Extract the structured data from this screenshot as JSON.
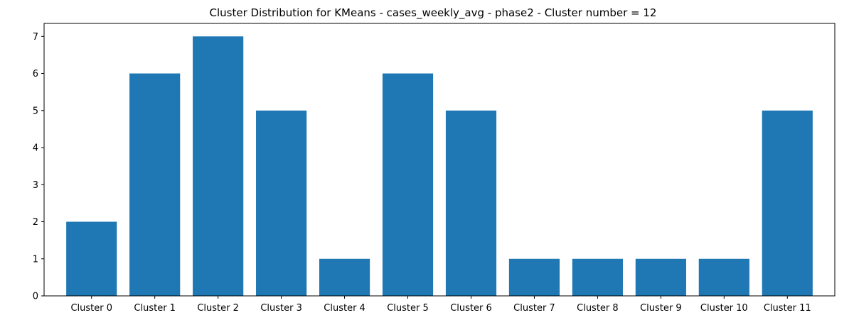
{
  "chart_data": {
    "type": "bar",
    "title": "Cluster Distribution for KMeans - cases_weekly_avg - phase2 - Cluster number = 12",
    "xlabel": "",
    "ylabel": "",
    "categories": [
      "Cluster 0",
      "Cluster 1",
      "Cluster 2",
      "Cluster 3",
      "Cluster 4",
      "Cluster 5",
      "Cluster 6",
      "Cluster 7",
      "Cluster 8",
      "Cluster 9",
      "Cluster 10",
      "Cluster 11"
    ],
    "values": [
      2,
      6,
      7,
      5,
      1,
      6,
      5,
      1,
      1,
      1,
      1,
      5
    ],
    "ylim": [
      0,
      7.35
    ],
    "yticks": [
      0,
      1,
      2,
      3,
      4,
      5,
      6,
      7
    ],
    "bar_color": "#1f77b4",
    "grid": false
  }
}
